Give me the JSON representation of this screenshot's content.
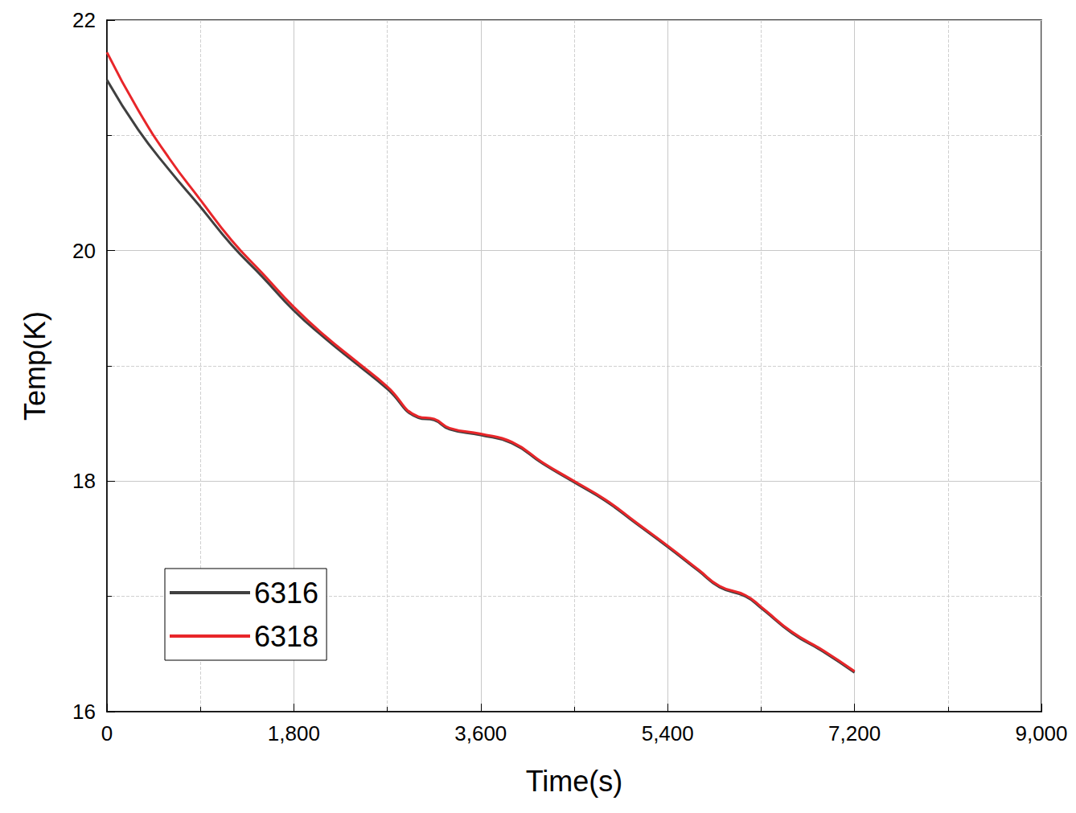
{
  "chart_data": {
    "type": "line",
    "x_label": "Time(s)",
    "y_label": "Temp(K)",
    "x": [
      0,
      300,
      600,
      900,
      1200,
      1500,
      1800,
      2100,
      2400,
      2700,
      3000,
      3150,
      3300,
      3600,
      3900,
      4200,
      4500,
      4800,
      5100,
      5400,
      5700,
      5900,
      6150,
      6300,
      6600,
      6900,
      7200
    ],
    "series": [
      {
        "name": "6316",
        "color": "#404040",
        "values": [
          21.48,
          21.05,
          20.7,
          20.38,
          20.05,
          19.77,
          19.48,
          19.24,
          19.02,
          18.8,
          18.55,
          18.53,
          18.45,
          18.4,
          18.33,
          18.15,
          17.99,
          17.83,
          17.63,
          17.43,
          17.22,
          17.08,
          17.0,
          16.9,
          16.68,
          16.52,
          16.34
        ]
      },
      {
        "name": "6318",
        "color": "#e8262a",
        "values": [
          21.72,
          21.22,
          20.8,
          20.44,
          20.09,
          19.8,
          19.51,
          19.26,
          19.04,
          18.82,
          18.56,
          18.54,
          18.46,
          18.41,
          18.34,
          18.16,
          18.0,
          17.84,
          17.64,
          17.44,
          17.23,
          17.09,
          17.01,
          16.91,
          16.69,
          16.53,
          16.35
        ]
      }
    ],
    "xlim": [
      0,
      9000
    ],
    "xticks": [
      0,
      1800,
      3600,
      5400,
      7200,
      9000
    ],
    "ylim": [
      16,
      22
    ],
    "yticks": [
      16,
      18,
      20,
      22
    ],
    "grid": true,
    "legend": "lower left"
  }
}
